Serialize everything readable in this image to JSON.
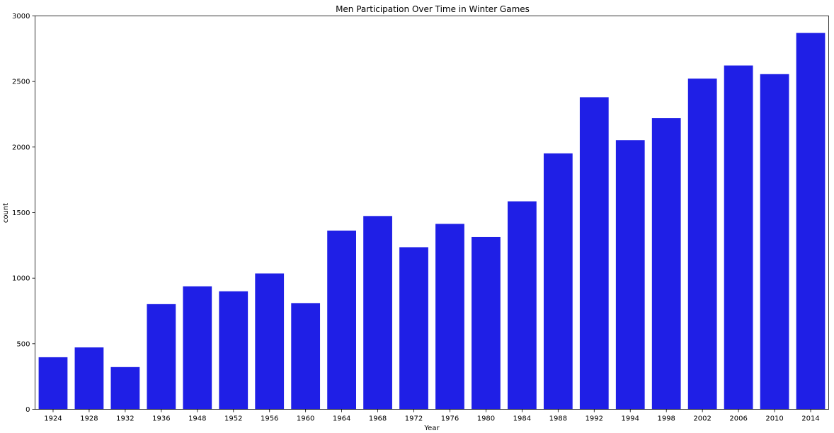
{
  "chart_data": {
    "type": "bar",
    "title": "Men Participation Over Time in Winter Games",
    "xlabel": "Year",
    "ylabel": "count",
    "categories": [
      "1924",
      "1928",
      "1932",
      "1936",
      "1948",
      "1952",
      "1956",
      "1960",
      "1964",
      "1968",
      "1972",
      "1976",
      "1980",
      "1984",
      "1988",
      "1992",
      "1994",
      "1998",
      "2002",
      "2006",
      "2010",
      "2014"
    ],
    "values": [
      397,
      472,
      322,
      802,
      938,
      900,
      1036,
      810,
      1363,
      1474,
      1236,
      1414,
      1314,
      1586,
      1952,
      2380,
      2052,
      2220,
      2522,
      2622,
      2556,
      2870
    ],
    "yticks": [
      "0",
      "500",
      "1000",
      "1500",
      "2000",
      "2500",
      "3000"
    ],
    "ylim": [
      0,
      3000
    ],
    "bar_color": "#1f1fe6",
    "grid": false,
    "legend": "none"
  }
}
